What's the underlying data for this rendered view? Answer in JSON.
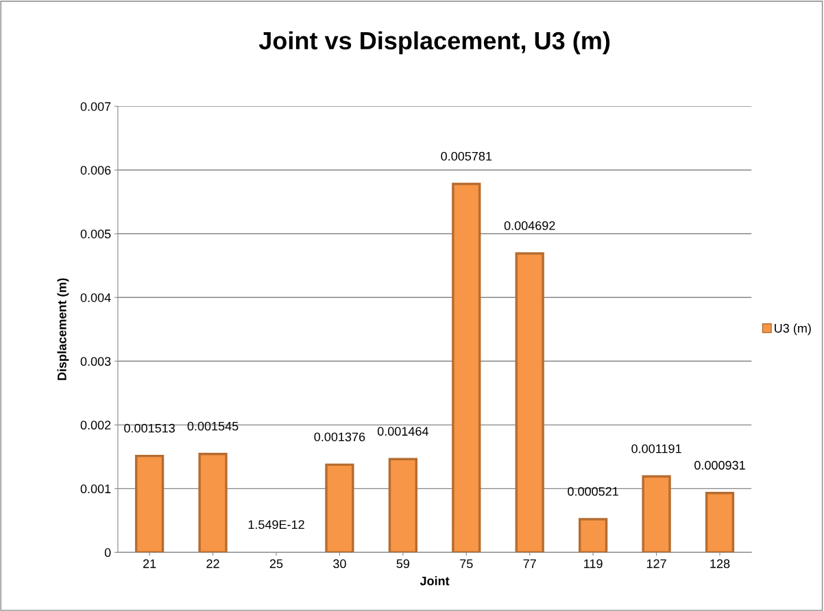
{
  "chart_data": {
    "type": "bar",
    "title": "Joint vs Displacement, U3 (m)",
    "xlabel": "Joint",
    "ylabel": "Displacement (m)",
    "categories": [
      "21",
      "22",
      "25",
      "30",
      "59",
      "75",
      "77",
      "119",
      "127",
      "128"
    ],
    "series": [
      {
        "name": "U3 (m)",
        "color": "#f79646",
        "values": [
          0.001513,
          0.001545,
          1.549e-12,
          0.001376,
          0.001464,
          0.005781,
          0.004692,
          0.000521,
          0.001191,
          0.000931
        ],
        "value_labels": [
          "0.001513",
          "0.001545",
          "1.549E-12",
          "0.001376",
          "0.001464",
          "0.005781",
          "0.004692",
          "0.000521",
          "0.001191",
          "0.000931"
        ]
      }
    ],
    "ylim": [
      0,
      0.007
    ],
    "yticks": [
      {
        "value": 0,
        "label": "0"
      },
      0.001,
      0.002,
      0.003,
      0.004,
      0.005,
      0.006,
      0.007
    ],
    "grid": "y",
    "legend": "right"
  }
}
